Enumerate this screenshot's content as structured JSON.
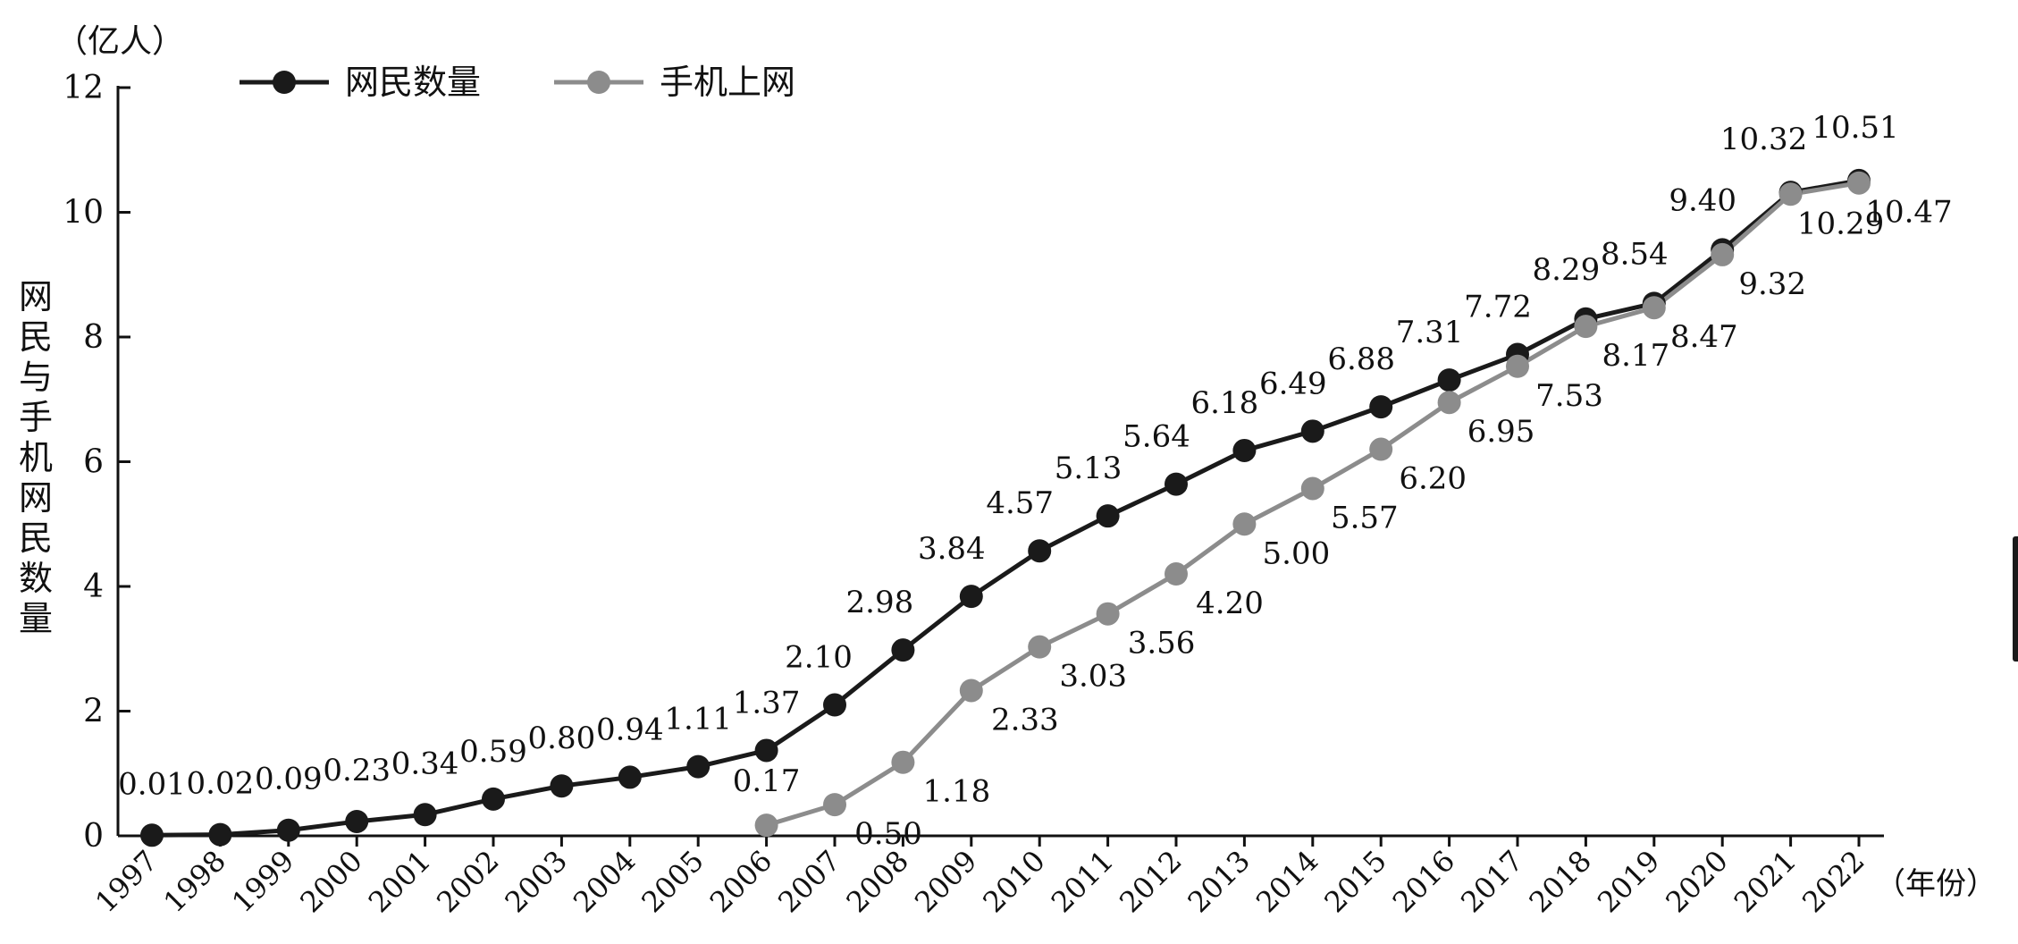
{
  "chart_data": {
    "type": "line",
    "y_unit_label": "（亿人）",
    "x_unit_label": "（年份）",
    "ylabel": "网民与手机网民数量",
    "ylim": [
      0,
      12
    ],
    "yticks": [
      0,
      2,
      4,
      6,
      8,
      10,
      12
    ],
    "categories": [
      "1997",
      "1998",
      "1999",
      "2000",
      "2001",
      "2002",
      "2003",
      "2004",
      "2005",
      "2006",
      "2007",
      "2008",
      "2009",
      "2010",
      "2011",
      "2012",
      "2013",
      "2014",
      "2015",
      "2016",
      "2017",
      "2018",
      "2019",
      "2020",
      "2021",
      "2022"
    ],
    "series": [
      {
        "name": "网民数量",
        "color": "#1a1a1a",
        "values": [
          0.01,
          0.02,
          0.09,
          0.23,
          0.34,
          0.59,
          0.8,
          0.94,
          1.11,
          1.37,
          2.1,
          2.98,
          3.84,
          4.57,
          5.13,
          5.64,
          6.18,
          6.49,
          6.88,
          7.31,
          7.72,
          8.29,
          8.54,
          9.4,
          10.32,
          10.51
        ],
        "labels": [
          "0.01",
          "0.02",
          "0.09",
          "0.23",
          "0.34",
          "0.59",
          "0.80",
          "0.94",
          "1.11",
          "1.37",
          "2.10",
          "2.98",
          "3.84",
          "4.57",
          "5.13",
          "5.64",
          "6.18",
          "6.49",
          "6.88",
          "7.31",
          "7.72",
          "8.29",
          "8.54",
          "9.40",
          "10.32",
          "10.51"
        ]
      },
      {
        "name": "手机上网",
        "color": "#8c8c8c",
        "values": [
          null,
          null,
          null,
          null,
          null,
          null,
          null,
          null,
          null,
          0.17,
          0.5,
          1.18,
          2.33,
          3.03,
          3.56,
          4.2,
          5.0,
          5.57,
          6.2,
          6.95,
          7.53,
          8.17,
          8.47,
          9.32,
          10.29,
          10.47
        ],
        "labels": [
          null,
          null,
          null,
          null,
          null,
          null,
          null,
          null,
          null,
          "0.17",
          "0.50",
          "1.18",
          "2.33",
          "3.03",
          "3.56",
          "4.20",
          "5.00",
          "5.57",
          "6.20",
          "6.95",
          "7.53",
          "8.17",
          "8.47",
          "9.32",
          "10.29",
          "10.47"
        ]
      }
    ],
    "legend": "top-left",
    "grid": false
  }
}
